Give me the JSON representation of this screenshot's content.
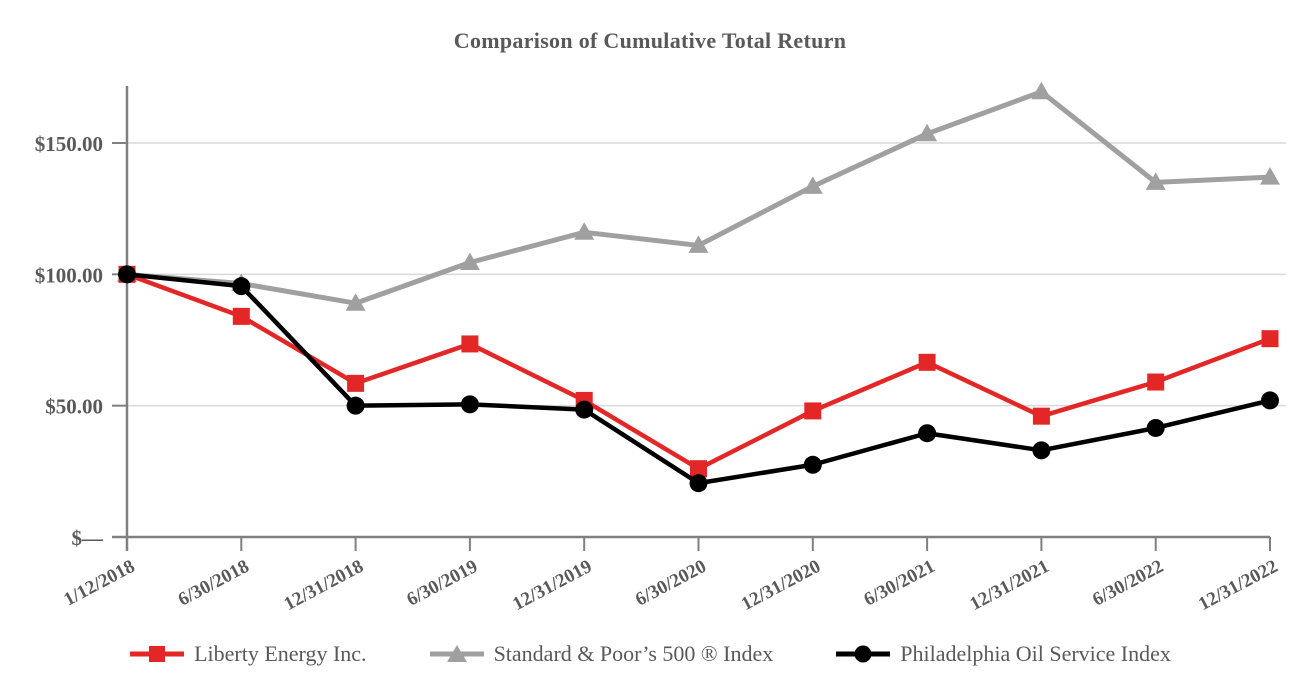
{
  "title": "Comparison of Cumulative Total Return",
  "colors": {
    "axis": "#808080",
    "grid": "#d9d9d9",
    "label": "#595959",
    "background": "#ffffff"
  },
  "chart_data": {
    "type": "line",
    "title": "Comparison of Cumulative Total Return",
    "x_labels": [
      "1/12/2018",
      "6/30/2018",
      "12/31/2018",
      "6/30/2019",
      "12/31/2019",
      "6/30/2020",
      "12/31/2020",
      "6/30/2021",
      "12/31/2021",
      "6/30/2022",
      "12/31/2022"
    ],
    "y_ticks": [
      {
        "value": 0,
        "label": "$—"
      },
      {
        "value": 50,
        "label": "$50.00"
      },
      {
        "value": 100,
        "label": "$100.00"
      },
      {
        "value": 150,
        "label": "$150.00"
      }
    ],
    "ylim": [
      0,
      172
    ],
    "grid": "horizontal",
    "legend_position": "bottom",
    "draw_order": [
      1,
      0,
      2
    ],
    "series": [
      {
        "name": "Liberty Energy Inc.",
        "marker": "square",
        "color": "#e22726",
        "values": [
          100,
          84,
          58.5,
          73.5,
          52,
          26,
          48,
          66.5,
          46,
          59,
          75.5
        ]
      },
      {
        "name": "Standard & Poor’s 500 ® Index",
        "marker": "triangle",
        "color": "#a0a0a0",
        "values": [
          100,
          96.5,
          89,
          104.5,
          116,
          111,
          133.5,
          153.5,
          169.5,
          135,
          137
        ]
      },
      {
        "name": "Philadelphia Oil Service Index",
        "marker": "circle",
        "color": "#000000",
        "values": [
          100,
          95.5,
          50,
          50.5,
          48.5,
          20.5,
          27.5,
          39.5,
          33,
          41.5,
          52
        ]
      }
    ]
  }
}
